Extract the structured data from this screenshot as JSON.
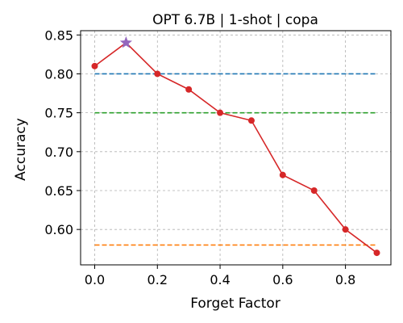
{
  "chart_data": {
    "type": "line",
    "title": "OPT 6.7B | 1-shot | copa",
    "xlabel": "Forget Factor",
    "ylabel": "Accuracy",
    "xlim": [
      -0.045,
      0.945
    ],
    "ylim": [
      0.5545,
      0.8555
    ],
    "xticks": [
      0.0,
      0.2,
      0.4,
      0.6,
      0.8
    ],
    "xtick_labels": [
      "0.0",
      "0.2",
      "0.4",
      "0.6",
      "0.8"
    ],
    "yticks": [
      0.6,
      0.65,
      0.7,
      0.75,
      0.8,
      0.85
    ],
    "ytick_labels": [
      "0.60",
      "0.65",
      "0.70",
      "0.75",
      "0.80",
      "0.85"
    ],
    "grid": true,
    "series": [
      {
        "style": "solid-line-with-markers",
        "color": "#d62728",
        "x": [
          0.0,
          0.1,
          0.2,
          0.3,
          0.4,
          0.5,
          0.6,
          0.7,
          0.8,
          0.9
        ],
        "y": [
          0.81,
          0.84,
          0.8,
          0.78,
          0.75,
          0.74,
          0.67,
          0.65,
          0.6,
          0.57
        ]
      }
    ],
    "reference_lines": [
      {
        "y": 0.8,
        "x_range": [
          0.0,
          0.9
        ],
        "color": "#1f77b4",
        "style": "dashed"
      },
      {
        "y": 0.75,
        "x_range": [
          0.0,
          0.9
        ],
        "color": "#2ca02c",
        "style": "dashed"
      },
      {
        "y": 0.58,
        "x_range": [
          0.0,
          0.9
        ],
        "color": "#ff7f0e",
        "style": "dashed"
      }
    ],
    "highlight": {
      "x": 0.1,
      "y": 0.84,
      "marker": "star",
      "color": "#9467bd"
    }
  }
}
